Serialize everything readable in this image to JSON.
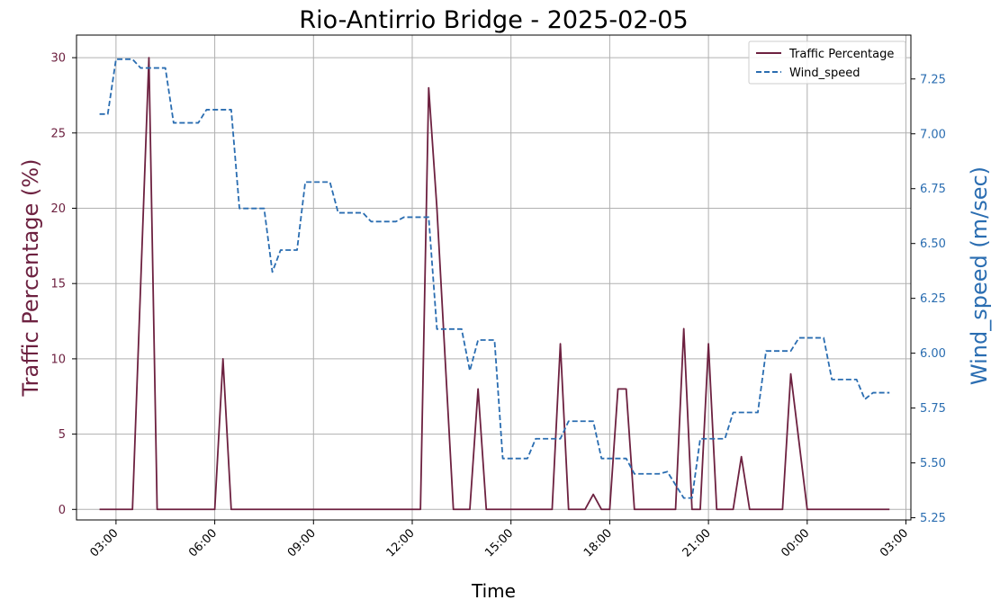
{
  "chart_data": {
    "type": "line",
    "title": "Rio-Antirrio Bridge - 2025-02-05",
    "xlabel": "Time",
    "ylabel_left": "Traffic Percentage (%)",
    "ylabel_right": "Wind_speed (m/sec)",
    "grid": true,
    "legend_position": "top-right",
    "x_tick_labels": [
      "03:00",
      "06:00",
      "09:00",
      "12:00",
      "15:00",
      "18:00",
      "21:00",
      "00:00",
      "03:00"
    ],
    "x_tick_hours": [
      3,
      6,
      9,
      12,
      15,
      18,
      21,
      24,
      27
    ],
    "xlim_hours": [
      1.8,
      27.15
    ],
    "y_left_ticks": [
      0,
      5,
      10,
      15,
      20,
      25,
      30
    ],
    "y_left_lim": [
      -0.7,
      31.5
    ],
    "y_right_ticks": [
      5.25,
      5.5,
      5.75,
      6.0,
      6.25,
      6.5,
      6.75,
      7.0,
      7.25
    ],
    "y_right_lim": [
      5.24,
      7.45
    ],
    "colors": {
      "traffic": "#6d2140",
      "wind": "#2a6db1",
      "grid": "#b0b0b0"
    },
    "series": [
      {
        "name": "Traffic Percentage",
        "axis": "left",
        "style": "solid",
        "x_hours": [
          2.5,
          3.0,
          3.5,
          3.75,
          4.0,
          4.25,
          4.5,
          5.0,
          5.5,
          6.0,
          6.25,
          6.5,
          7.0,
          8.0,
          9.0,
          10.0,
          11.0,
          12.0,
          12.25,
          12.5,
          12.75,
          13.0,
          13.25,
          13.75,
          14.0,
          14.25,
          15.0,
          15.75,
          16.0,
          16.25,
          16.5,
          16.75,
          17.25,
          17.5,
          17.75,
          18.0,
          18.25,
          18.5,
          18.75,
          19.0,
          19.5,
          20.0,
          20.25,
          20.5,
          20.75,
          21.0,
          21.25,
          21.5,
          21.75,
          22.0,
          22.25,
          23.0,
          23.25,
          23.5,
          24.0,
          24.5,
          25.0,
          25.5,
          26.0,
          26.5
        ],
        "values": [
          0,
          0,
          0,
          15,
          30,
          0,
          0,
          0,
          0,
          0,
          10,
          0,
          0,
          0,
          0,
          0,
          0,
          0,
          0,
          28,
          20,
          10,
          0,
          0,
          8,
          0,
          0,
          0,
          0,
          0,
          11,
          0,
          0,
          1,
          0,
          0,
          8,
          8,
          0,
          0,
          0,
          0,
          12,
          0,
          0,
          11,
          0,
          0,
          0,
          3.5,
          0,
          0,
          0,
          9,
          0,
          0,
          0,
          0,
          0,
          0
        ]
      },
      {
        "name": "Wind_speed",
        "axis": "right",
        "style": "dashed",
        "x_hours": [
          2.5,
          2.75,
          3.0,
          3.25,
          3.5,
          3.75,
          4.0,
          4.5,
          4.75,
          5.0,
          5.5,
          5.75,
          6.0,
          6.5,
          6.75,
          7.0,
          7.5,
          7.75,
          8.0,
          8.5,
          8.75,
          9.0,
          9.5,
          9.75,
          10.0,
          10.5,
          10.75,
          11.0,
          11.5,
          11.75,
          12.0,
          12.5,
          12.75,
          13.0,
          13.5,
          13.75,
          14.0,
          14.5,
          14.75,
          15.0,
          15.5,
          15.75,
          16.0,
          16.5,
          16.75,
          17.0,
          17.5,
          17.75,
          18.0,
          18.5,
          18.75,
          19.0,
          19.5,
          19.75,
          20.0,
          20.25,
          20.5,
          20.75,
          21.0,
          21.5,
          21.75,
          22.0,
          22.5,
          22.75,
          23.0,
          23.5,
          23.75,
          24.0,
          24.5,
          24.75,
          25.0,
          25.5,
          25.75,
          26.0,
          26.25,
          26.5
        ],
        "values": [
          7.09,
          7.09,
          7.34,
          7.34,
          7.34,
          7.3,
          7.3,
          7.3,
          7.05,
          7.05,
          7.05,
          7.11,
          7.11,
          7.11,
          6.66,
          6.66,
          6.66,
          6.37,
          6.47,
          6.47,
          6.78,
          6.78,
          6.78,
          6.64,
          6.64,
          6.64,
          6.6,
          6.6,
          6.6,
          6.62,
          6.62,
          6.62,
          6.11,
          6.11,
          6.11,
          5.92,
          6.06,
          6.06,
          5.52,
          5.52,
          5.52,
          5.61,
          5.61,
          5.61,
          5.69,
          5.69,
          5.69,
          5.52,
          5.52,
          5.52,
          5.45,
          5.45,
          5.45,
          5.46,
          5.4,
          5.34,
          5.34,
          5.61,
          5.61,
          5.61,
          5.73,
          5.73,
          5.73,
          6.01,
          6.01,
          6.01,
          6.07,
          6.07,
          6.07,
          5.88,
          5.88,
          5.88,
          5.79,
          5.82,
          5.82,
          5.82
        ]
      }
    ]
  }
}
